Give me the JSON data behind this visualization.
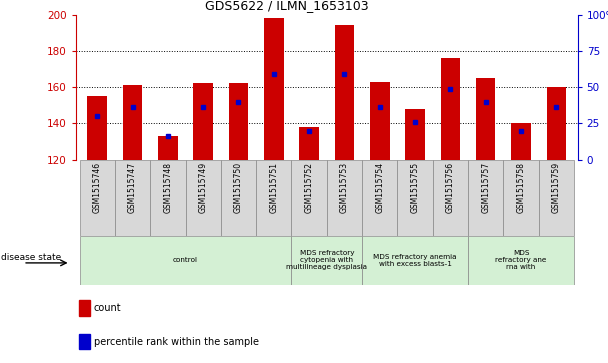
{
  "title": "GDS5622 / ILMN_1653103",
  "samples": [
    "GSM1515746",
    "GSM1515747",
    "GSM1515748",
    "GSM1515749",
    "GSM1515750",
    "GSM1515751",
    "GSM1515752",
    "GSM1515753",
    "GSM1515754",
    "GSM1515755",
    "GSM1515756",
    "GSM1515757",
    "GSM1515758",
    "GSM1515759"
  ],
  "counts": [
    155,
    161,
    133,
    162,
    162,
    198,
    138,
    194,
    163,
    148,
    176,
    165,
    140,
    160
  ],
  "percentile_ranks": [
    144,
    149,
    133,
    149,
    152,
    167,
    136,
    167,
    149,
    141,
    159,
    152,
    136,
    149
  ],
  "ylim_left": [
    120,
    200
  ],
  "ylim_right": [
    0,
    100
  ],
  "yticks_left": [
    120,
    140,
    160,
    180,
    200
  ],
  "yticks_right": [
    0,
    25,
    50,
    75,
    100
  ],
  "bar_color": "#cc0000",
  "dot_color": "#0000cc",
  "disease_groups": [
    {
      "label": "control",
      "start": 0,
      "end": 6,
      "color": "#d4f0d4"
    },
    {
      "label": "MDS refractory\ncytopenia with\nmultilineage dysplasia",
      "start": 6,
      "end": 8,
      "color": "#d4f0d4"
    },
    {
      "label": "MDS refractory anemia\nwith excess blasts-1",
      "start": 8,
      "end": 11,
      "color": "#d4f0d4"
    },
    {
      "label": "MDS\nrefractory ane\nrna with",
      "start": 11,
      "end": 14,
      "color": "#d4f0d4"
    }
  ],
  "legend_items": [
    {
      "label": "count",
      "color": "#cc0000"
    },
    {
      "label": "percentile rank within the sample",
      "color": "#0000cc"
    }
  ]
}
